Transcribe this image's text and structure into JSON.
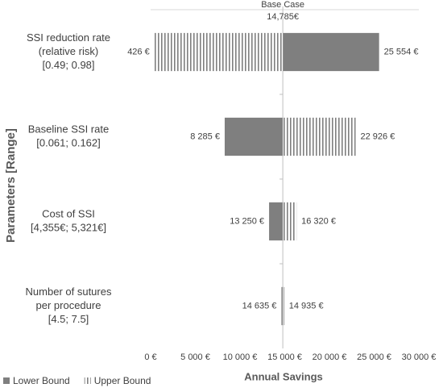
{
  "chart_data": {
    "type": "tornado",
    "y_axis_title": "Parameters [Range]",
    "x_axis_title": "Annual Savings",
    "base_case": {
      "label": "Base Case",
      "value": 14785,
      "value_label": "14,785€"
    },
    "categories": [
      [
        "SSI reduction rate",
        "(relative risk)",
        "[0.49; 0.98]"
      ],
      [
        "Baseline SSI rate",
        "[0.061; 0.162]"
      ],
      [
        "Cost of SSI",
        "[4,355€; 5,321€]"
      ],
      [
        "Number of sutures",
        "per procedure",
        "[4.5; 7.5]"
      ]
    ],
    "series": [
      {
        "name": "Lower Bound",
        "color": "#7f7f7f",
        "pattern": "solid",
        "values": [
          25554,
          8285,
          13250,
          14635
        ],
        "value_labels": [
          "25 554 €",
          "8 285 €",
          "13 250 €",
          "14 635 €"
        ]
      },
      {
        "name": "Upper Bound",
        "color": "#7f7f7f",
        "pattern": "vertical-hatch",
        "values": [
          426,
          22926,
          16320,
          14935
        ],
        "value_labels": [
          "426 €",
          "22 926 €",
          "16 320 €",
          "14 935 €"
        ]
      }
    ],
    "xlim": [
      0,
      30000
    ],
    "xticks": [
      {
        "value": 0,
        "label": "0 €"
      },
      {
        "value": 5000,
        "label": "5 000 €"
      },
      {
        "value": 10000,
        "label": "10 000 €"
      },
      {
        "value": 15000,
        "label": "15 000 €"
      },
      {
        "value": 20000,
        "label": "20 000 €"
      },
      {
        "value": 25000,
        "label": "25 000 €"
      },
      {
        "value": 30000,
        "label": "30 000 €"
      }
    ],
    "legend": "bottom-left"
  }
}
